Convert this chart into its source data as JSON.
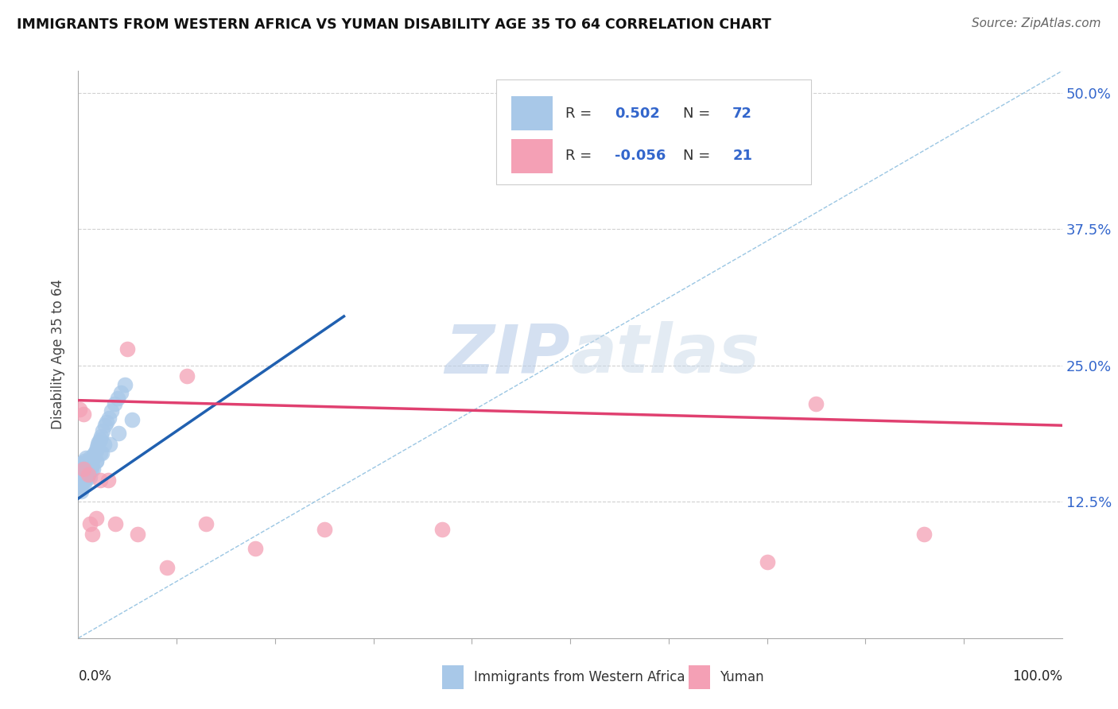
{
  "title": "IMMIGRANTS FROM WESTERN AFRICA VS YUMAN DISABILITY AGE 35 TO 64 CORRELATION CHART",
  "source": "Source: ZipAtlas.com",
  "ylabel": "Disability Age 35 to 64",
  "legend_label1": "Immigrants from Western Africa",
  "legend_label2": "Yuman",
  "R1": "0.502",
  "N1": "72",
  "R2": "-0.056",
  "N2": "21",
  "xlim": [
    0,
    1.0
  ],
  "ylim": [
    0,
    0.52
  ],
  "yticks": [
    0.125,
    0.25,
    0.375,
    0.5
  ],
  "ytick_labels": [
    "12.5%",
    "25.0%",
    "37.5%",
    "50.0%"
  ],
  "color_blue": "#A8C8E8",
  "color_pink": "#F4A0B5",
  "color_blue_line": "#2060B0",
  "color_pink_line": "#E04070",
  "color_diag_line": "#90C0E0",
  "watermark_zip": "ZIP",
  "watermark_atlas": "atlas",
  "blue_x": [
    0.001,
    0.001,
    0.002,
    0.002,
    0.002,
    0.003,
    0.003,
    0.003,
    0.003,
    0.004,
    0.004,
    0.004,
    0.005,
    0.005,
    0.005,
    0.005,
    0.006,
    0.006,
    0.006,
    0.007,
    0.007,
    0.007,
    0.008,
    0.008,
    0.008,
    0.009,
    0.009,
    0.01,
    0.01,
    0.011,
    0.011,
    0.012,
    0.012,
    0.013,
    0.014,
    0.015,
    0.016,
    0.017,
    0.018,
    0.019,
    0.02,
    0.021,
    0.022,
    0.023,
    0.025,
    0.027,
    0.029,
    0.031,
    0.034,
    0.037,
    0.04,
    0.043,
    0.047,
    0.002,
    0.004,
    0.006,
    0.008,
    0.01,
    0.012,
    0.015,
    0.018,
    0.022,
    0.026,
    0.003,
    0.006,
    0.009,
    0.013,
    0.018,
    0.024,
    0.032,
    0.041,
    0.055
  ],
  "blue_y": [
    0.145,
    0.15,
    0.14,
    0.148,
    0.155,
    0.142,
    0.148,
    0.155,
    0.16,
    0.145,
    0.152,
    0.158,
    0.148,
    0.155,
    0.16,
    0.143,
    0.15,
    0.158,
    0.162,
    0.148,
    0.155,
    0.16,
    0.15,
    0.158,
    0.165,
    0.152,
    0.16,
    0.15,
    0.16,
    0.155,
    0.162,
    0.155,
    0.165,
    0.158,
    0.162,
    0.165,
    0.168,
    0.17,
    0.172,
    0.175,
    0.178,
    0.18,
    0.182,
    0.185,
    0.19,
    0.195,
    0.198,
    0.202,
    0.208,
    0.215,
    0.22,
    0.225,
    0.232,
    0.138,
    0.142,
    0.148,
    0.152,
    0.155,
    0.148,
    0.155,
    0.162,
    0.17,
    0.178,
    0.135,
    0.142,
    0.148,
    0.155,
    0.162,
    0.17,
    0.178,
    0.188,
    0.2
  ],
  "pink_x": [
    0.001,
    0.005,
    0.01,
    0.012,
    0.014,
    0.018,
    0.03,
    0.038,
    0.06,
    0.09,
    0.13,
    0.18,
    0.25,
    0.37,
    0.7,
    0.75,
    0.86,
    0.005,
    0.022,
    0.05,
    0.11
  ],
  "pink_y": [
    0.21,
    0.155,
    0.15,
    0.105,
    0.095,
    0.11,
    0.145,
    0.105,
    0.095,
    0.065,
    0.105,
    0.082,
    0.1,
    0.1,
    0.07,
    0.215,
    0.095,
    0.205,
    0.145,
    0.265,
    0.24
  ],
  "blue_line_x": [
    0.0,
    0.27
  ],
  "blue_line_y": [
    0.128,
    0.295
  ],
  "pink_line_x": [
    0.0,
    1.0
  ],
  "pink_line_y": [
    0.218,
    0.195
  ],
  "diag_line_x": [
    0.0,
    1.0
  ],
  "diag_line_y": [
    0.0,
    0.52
  ],
  "xtick_positions": [
    0.1,
    0.2,
    0.3,
    0.4,
    0.5,
    0.6,
    0.7,
    0.8,
    0.9
  ]
}
